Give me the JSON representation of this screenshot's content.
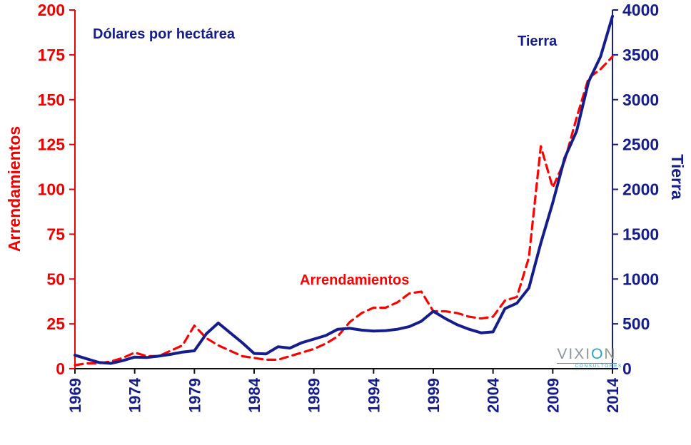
{
  "chart_data": {
    "type": "line",
    "inner_title": "Dólares por hectárea",
    "x": [
      1969,
      1970,
      1971,
      1972,
      1973,
      1974,
      1975,
      1976,
      1977,
      1978,
      1979,
      1980,
      1981,
      1982,
      1983,
      1984,
      1985,
      1986,
      1987,
      1988,
      1989,
      1990,
      1991,
      1992,
      1993,
      1994,
      1995,
      1996,
      1997,
      1998,
      1999,
      2000,
      2001,
      2002,
      2003,
      2004,
      2005,
      2006,
      2007,
      2008,
      2009,
      2010,
      2011,
      2012,
      2013,
      2014
    ],
    "x_ticks": [
      1969,
      1974,
      1979,
      1984,
      1989,
      1994,
      1999,
      2004,
      2009,
      2014
    ],
    "axes": {
      "left": {
        "label": "Arrendamientos",
        "min": 0,
        "max": 200,
        "step": 25,
        "color": "#ee0000"
      },
      "right": {
        "label": "Tierra",
        "min": 0,
        "max": 4000,
        "step": 500,
        "color": "#151d8c"
      }
    },
    "series": [
      {
        "name": "Arrendamientos",
        "axis": "left",
        "color": "#ff0000",
        "dash": "dashed",
        "values": [
          2,
          3,
          3,
          4,
          6,
          9,
          7,
          7,
          10,
          13,
          24,
          17,
          13,
          10,
          7,
          6,
          5,
          5,
          7,
          9,
          11,
          14,
          18,
          26,
          31,
          34,
          34,
          37,
          42,
          43,
          32,
          32,
          31,
          29,
          28,
          29,
          38,
          40,
          62,
          124,
          101,
          116,
          140,
          162,
          167,
          174
        ]
      },
      {
        "name": "Tierra",
        "axis": "right",
        "color": "#151d8c",
        "dash": "solid",
        "values": [
          150,
          110,
          70,
          60,
          90,
          130,
          125,
          140,
          160,
          185,
          200,
          390,
          510,
          400,
          290,
          170,
          165,
          245,
          230,
          290,
          330,
          370,
          440,
          450,
          430,
          420,
          425,
          440,
          470,
          530,
          640,
          560,
          490,
          440,
          400,
          410,
          670,
          730,
          900,
          1400,
          1850,
          2350,
          2650,
          3200,
          3480,
          3930
        ]
      }
    ],
    "legend_position": "in-plot-labels",
    "grid": false,
    "logo": {
      "part1": "VIXI",
      "part2": "O",
      "part3": "N",
      "subtext": "CONSULTORES"
    }
  }
}
